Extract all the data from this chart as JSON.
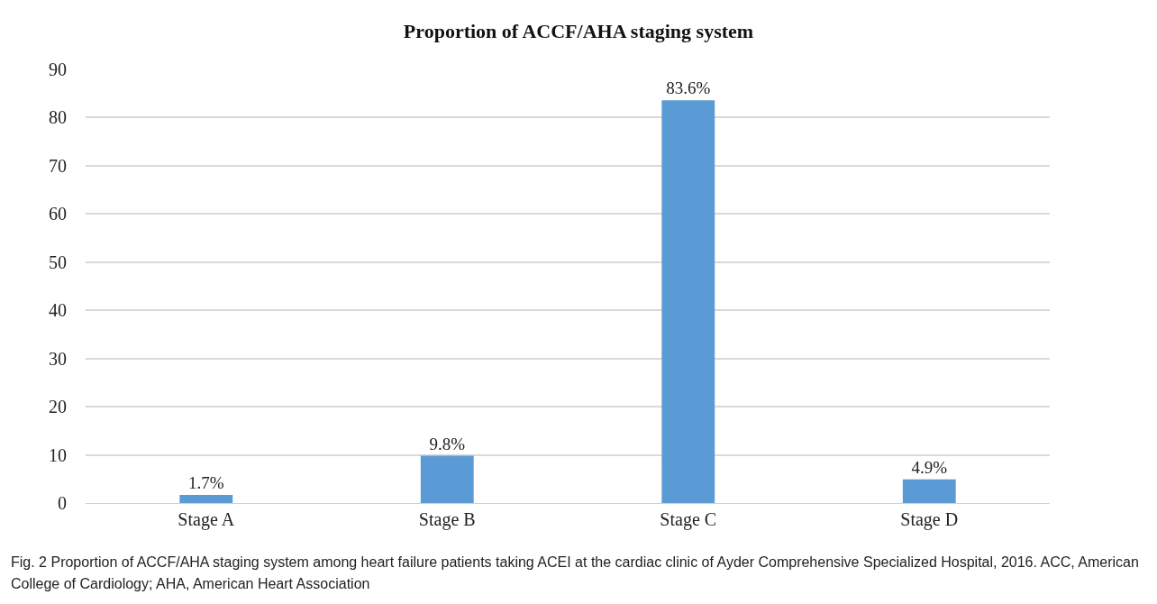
{
  "chart_data": {
    "type": "bar",
    "title": "Proportion of ACCF/AHA staging system",
    "categories": [
      "Stage A",
      "Stage B",
      "Stage C",
      "Stage D"
    ],
    "values": [
      1.7,
      9.8,
      83.6,
      4.9
    ],
    "value_labels": [
      "1.7%",
      "9.8%",
      "83.6%",
      "4.9%"
    ],
    "color": "#5b9bd5",
    "ylim": [
      0,
      90
    ],
    "yticks": [
      0,
      10,
      20,
      30,
      40,
      50,
      60,
      70,
      80,
      90
    ],
    "grid": "y",
    "legend": false,
    "annotations": [
      "Fig. 2  Proportion of ACCF/AHA staging system among heart failure patients taking ACEI at the cardiac clinic of Ayder Comprehensive Specialized Hospital, 2016. ACC, American College of Cardiology; AHA, American Heart Association"
    ]
  }
}
